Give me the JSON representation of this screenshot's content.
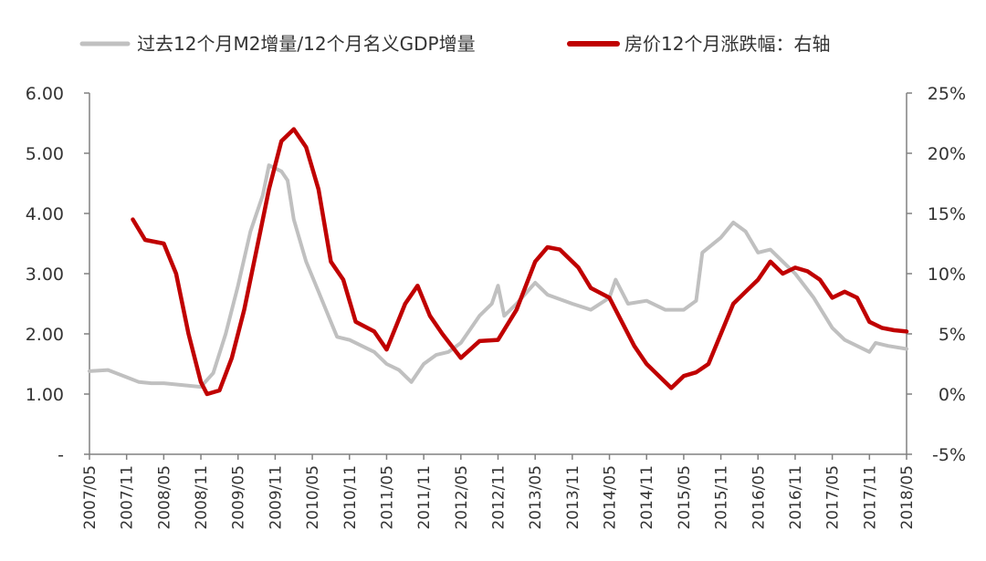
{
  "chart_data": {
    "type": "line",
    "legend": {
      "placement": "top",
      "entries": [
        {
          "series": "m2_gdp",
          "label": "过去12个月M2增量/12个月名义GDP增量",
          "color": "#C0C0C0"
        },
        {
          "series": "house",
          "label": "房价12个月涨跌幅：右轴",
          "color": "#C00000"
        }
      ]
    },
    "x_axis": {
      "range": [
        "2007/05",
        "2018/05"
      ],
      "tick_labels": [
        "2007/05",
        "2007/11",
        "2008/05",
        "2008/11",
        "2009/05",
        "2009/11",
        "2010/05",
        "2010/11",
        "2011/05",
        "2011/11",
        "2012/05",
        "2012/11",
        "2013/05",
        "2013/11",
        "2014/05",
        "2014/11",
        "2015/05",
        "2015/11",
        "2016/05",
        "2016/11",
        "2017/05",
        "2017/11",
        "2018/05"
      ]
    },
    "y_left": {
      "range": [
        0,
        6
      ],
      "tick_values": [
        0,
        1,
        2,
        3,
        4,
        5,
        6
      ],
      "tick_labels": [
        "-",
        "1.00",
        "2.00",
        "3.00",
        "4.00",
        "5.00",
        "6.00"
      ]
    },
    "y_right": {
      "range": [
        -5,
        25
      ],
      "tick_values": [
        -5,
        0,
        5,
        10,
        15,
        20,
        25
      ],
      "tick_labels": [
        "-5%",
        "0%",
        "5%",
        "10%",
        "15%",
        "20%",
        "25%"
      ]
    },
    "grid": false,
    "series": [
      {
        "id": "m2_gdp",
        "axis": "left",
        "color": "#C0C0C0",
        "points": [
          [
            "2007/05",
            1.38
          ],
          [
            "2007/08",
            1.4
          ],
          [
            "2007/11",
            1.28
          ],
          [
            "2008/01",
            1.2
          ],
          [
            "2008/03",
            1.18
          ],
          [
            "2008/05",
            1.18
          ],
          [
            "2008/08",
            1.15
          ],
          [
            "2008/11",
            1.12
          ],
          [
            "2009/01",
            1.35
          ],
          [
            "2009/03",
            2.0
          ],
          [
            "2009/05",
            2.8
          ],
          [
            "2009/07",
            3.7
          ],
          [
            "2009/09",
            4.3
          ],
          [
            "2009/10",
            4.8
          ],
          [
            "2009/12",
            4.7
          ],
          [
            "2010/01",
            4.55
          ],
          [
            "2010/02",
            3.9
          ],
          [
            "2010/04",
            3.2
          ],
          [
            "2010/06",
            2.7
          ],
          [
            "2010/08",
            2.2
          ],
          [
            "2010/09",
            1.95
          ],
          [
            "2010/11",
            1.9
          ],
          [
            "2011/01",
            1.8
          ],
          [
            "2011/03",
            1.7
          ],
          [
            "2011/05",
            1.5
          ],
          [
            "2011/07",
            1.4
          ],
          [
            "2011/09",
            1.2
          ],
          [
            "2011/11",
            1.5
          ],
          [
            "2012/01",
            1.65
          ],
          [
            "2012/03",
            1.7
          ],
          [
            "2012/05",
            1.85
          ],
          [
            "2012/08",
            2.3
          ],
          [
            "2012/10",
            2.5
          ],
          [
            "2012/11",
            2.8
          ],
          [
            "2012/12",
            2.3
          ],
          [
            "2013/02",
            2.5
          ],
          [
            "2013/05",
            2.85
          ],
          [
            "2013/07",
            2.65
          ],
          [
            "2013/11",
            2.5
          ],
          [
            "2014/02",
            2.4
          ],
          [
            "2014/05",
            2.6
          ],
          [
            "2014/06",
            2.9
          ],
          [
            "2014/08",
            2.5
          ],
          [
            "2014/11",
            2.55
          ],
          [
            "2015/02",
            2.4
          ],
          [
            "2015/05",
            2.4
          ],
          [
            "2015/07",
            2.55
          ],
          [
            "2015/08",
            3.35
          ],
          [
            "2015/11",
            3.6
          ],
          [
            "2016/01",
            3.85
          ],
          [
            "2016/03",
            3.7
          ],
          [
            "2016/05",
            3.35
          ],
          [
            "2016/07",
            3.4
          ],
          [
            "2016/09",
            3.2
          ],
          [
            "2016/11",
            3.0
          ],
          [
            "2017/02",
            2.6
          ],
          [
            "2017/05",
            2.1
          ],
          [
            "2017/07",
            1.9
          ],
          [
            "2017/09",
            1.8
          ],
          [
            "2017/11",
            1.7
          ],
          [
            "2017/12",
            1.85
          ],
          [
            "2018/02",
            1.8
          ],
          [
            "2018/05",
            1.75
          ]
        ]
      },
      {
        "id": "house",
        "axis": "right",
        "color": "#C00000",
        "points": [
          [
            "2007/12",
            14.5
          ],
          [
            "2008/02",
            12.8
          ],
          [
            "2008/05",
            12.5
          ],
          [
            "2008/07",
            10.0
          ],
          [
            "2008/09",
            5.0
          ],
          [
            "2008/11",
            1.0
          ],
          [
            "2008/12",
            0.0
          ],
          [
            "2009/02",
            0.3
          ],
          [
            "2009/04",
            3.0
          ],
          [
            "2009/06",
            7.0
          ],
          [
            "2009/08",
            12.0
          ],
          [
            "2009/10",
            17.0
          ],
          [
            "2009/12",
            21.0
          ],
          [
            "2010/02",
            22.0
          ],
          [
            "2010/04",
            20.5
          ],
          [
            "2010/06",
            17.0
          ],
          [
            "2010/08",
            11.0
          ],
          [
            "2010/10",
            9.5
          ],
          [
            "2010/12",
            6.0
          ],
          [
            "2011/03",
            5.2
          ],
          [
            "2011/05",
            3.7
          ],
          [
            "2011/08",
            7.5
          ],
          [
            "2011/10",
            9.0
          ],
          [
            "2011/12",
            6.5
          ],
          [
            "2012/02",
            5.0
          ],
          [
            "2012/05",
            3.0
          ],
          [
            "2012/08",
            4.4
          ],
          [
            "2012/11",
            4.5
          ],
          [
            "2013/02",
            7.0
          ],
          [
            "2013/05",
            11.0
          ],
          [
            "2013/07",
            12.2
          ],
          [
            "2013/09",
            12.0
          ],
          [
            "2013/12",
            10.5
          ],
          [
            "2014/02",
            8.8
          ],
          [
            "2014/05",
            8.0
          ],
          [
            "2014/07",
            6.0
          ],
          [
            "2014/09",
            4.0
          ],
          [
            "2014/11",
            2.5
          ],
          [
            "2015/01",
            1.5
          ],
          [
            "2015/03",
            0.5
          ],
          [
            "2015/05",
            1.5
          ],
          [
            "2015/07",
            1.8
          ],
          [
            "2015/09",
            2.5
          ],
          [
            "2015/11",
            5.0
          ],
          [
            "2016/01",
            7.5
          ],
          [
            "2016/03",
            8.5
          ],
          [
            "2016/05",
            9.5
          ],
          [
            "2016/07",
            11.0
          ],
          [
            "2016/09",
            10.0
          ],
          [
            "2016/11",
            10.5
          ],
          [
            "2017/01",
            10.2
          ],
          [
            "2017/03",
            9.5
          ],
          [
            "2017/05",
            8.0
          ],
          [
            "2017/07",
            8.5
          ],
          [
            "2017/09",
            8.0
          ],
          [
            "2017/11",
            6.0
          ],
          [
            "2018/01",
            5.5
          ],
          [
            "2018/03",
            5.3
          ],
          [
            "2018/05",
            5.2
          ]
        ]
      }
    ]
  }
}
